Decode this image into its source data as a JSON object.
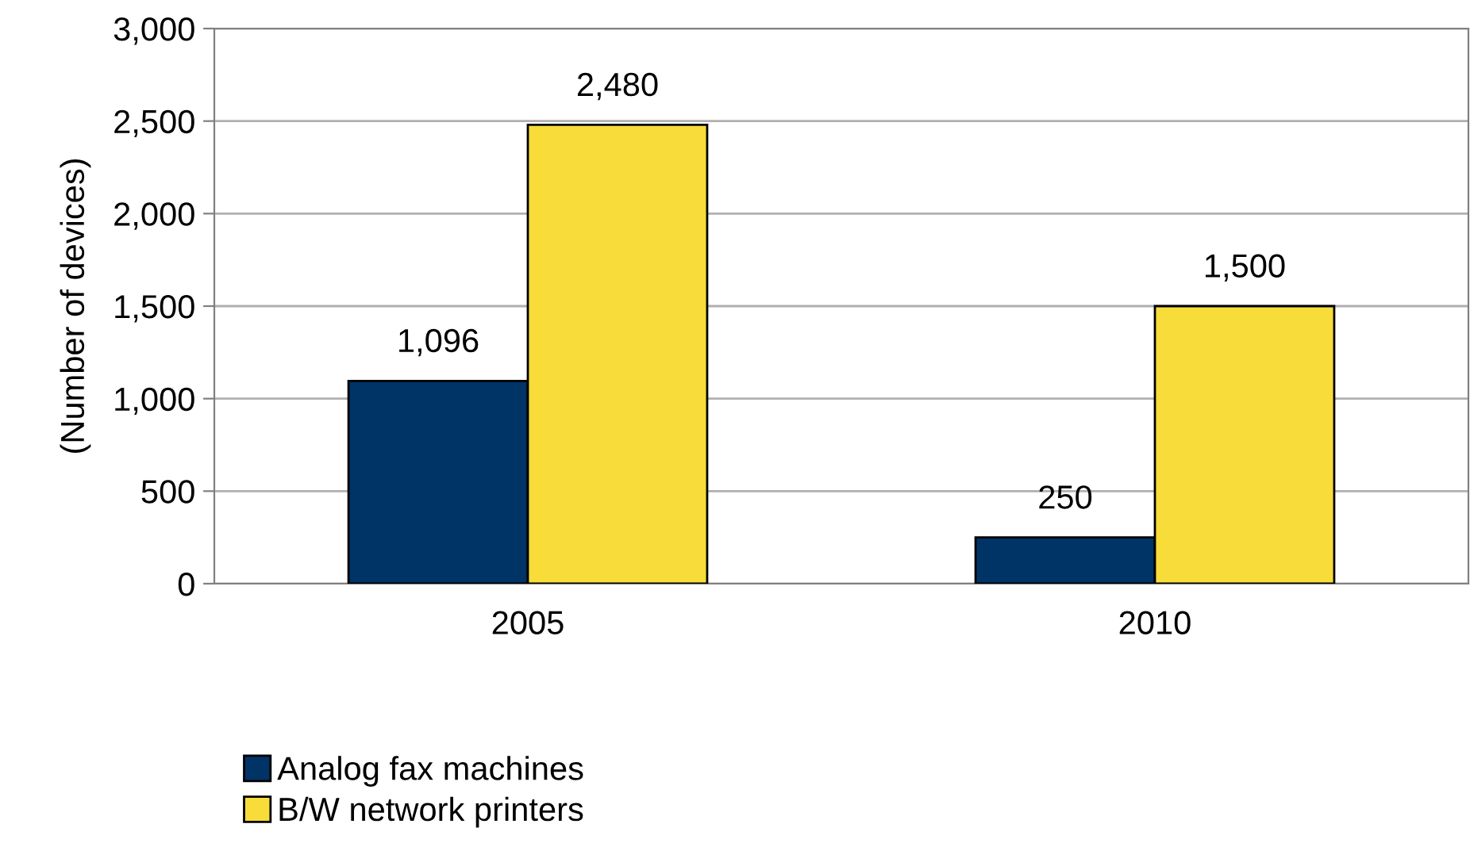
{
  "chart_data": {
    "type": "bar",
    "ylabel": "(Number of devices)",
    "categories": [
      "2005",
      "2010"
    ],
    "series": [
      {
        "name": "Analog fax machines",
        "color": "#003366",
        "values": [
          1096,
          250
        ],
        "value_labels": [
          "1,096",
          "250"
        ]
      },
      {
        "name": "B/W network printers",
        "color": "#f7dc3a",
        "values": [
          2480,
          1500
        ],
        "value_labels": [
          "2,480",
          "1,500"
        ]
      }
    ],
    "ylim": [
      0,
      3000
    ],
    "yticks": [
      0,
      {
        "value": 500,
        "label": "500"
      },
      {
        "value": 1000,
        "label": "1,000"
      },
      {
        "value": 1500,
        "label": "1,500"
      },
      {
        "value": 2000,
        "label": "2,000"
      },
      {
        "value": 2500,
        "label": "2,500"
      },
      {
        "value": 3000,
        "label": "3,000"
      }
    ],
    "grid": "y",
    "legend": "bottom left"
  }
}
